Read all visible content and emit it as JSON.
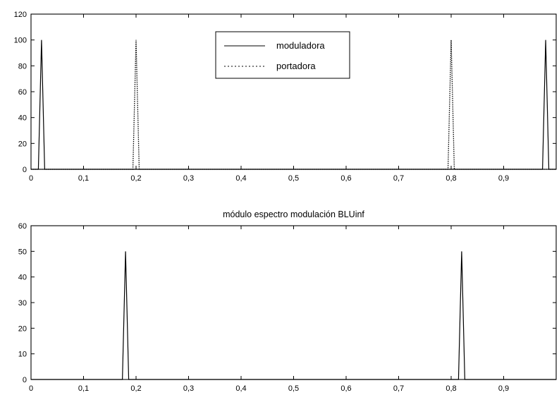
{
  "chart_data": [
    {
      "type": "line",
      "title": "",
      "xlabel": "",
      "ylabel": "",
      "xlim": [
        0,
        1
      ],
      "ylim": [
        0,
        120
      ],
      "xticks": [
        0,
        0.1,
        0.2,
        0.3,
        0.4,
        0.5,
        0.6,
        0.7,
        0.8,
        0.9
      ],
      "xtick_labels": [
        "0",
        "0,1",
        "0,2",
        "0,3",
        "0,4",
        "0,5",
        "0,6",
        "0,7",
        "0,8",
        "0,9"
      ],
      "yticks": [
        0,
        20,
        40,
        60,
        80,
        100,
        120
      ],
      "ytick_labels": [
        "0",
        "20",
        "40",
        "60",
        "80",
        "100",
        "120"
      ],
      "grid": false,
      "legend_position": "top-center",
      "series": [
        {
          "name": "moduladora",
          "style": "solid",
          "color": "#000000",
          "x": [
            0,
            0.014,
            0.02,
            0.026,
            0.97,
            0.974,
            0.98,
            0.986,
            1
          ],
          "y": [
            0,
            0,
            100,
            0,
            0,
            0,
            100,
            0,
            0
          ]
        },
        {
          "name": "portadora",
          "style": "dotted",
          "color": "#000000",
          "x": [
            0,
            0.194,
            0.2,
            0.206,
            0.794,
            0.8,
            0.806,
            1
          ],
          "y": [
            0,
            0,
            100,
            0,
            0,
            100,
            0,
            0
          ]
        }
      ]
    },
    {
      "type": "line",
      "title": "módulo espectro modulación BLUinf",
      "xlabel": "",
      "ylabel": "",
      "xlim": [
        0,
        1
      ],
      "ylim": [
        0,
        60
      ],
      "xticks": [
        0,
        0.1,
        0.2,
        0.3,
        0.4,
        0.5,
        0.6,
        0.7,
        0.8,
        0.9
      ],
      "xtick_labels": [
        "0",
        "0,1",
        "0,2",
        "0,3",
        "0,4",
        "0,5",
        "0,6",
        "0,7",
        "0,8",
        "0,9"
      ],
      "yticks": [
        0,
        10,
        20,
        30,
        40,
        50,
        60
      ],
      "ytick_labels": [
        "0",
        "10",
        "20",
        "30",
        "40",
        "50",
        "60"
      ],
      "grid": false,
      "series": [
        {
          "style": "solid",
          "color": "#000000",
          "x": [
            0,
            0.174,
            0.18,
            0.186,
            0.814,
            0.82,
            0.826,
            1
          ],
          "y": [
            0,
            0,
            50,
            0,
            0,
            50,
            0,
            0
          ]
        }
      ]
    }
  ]
}
